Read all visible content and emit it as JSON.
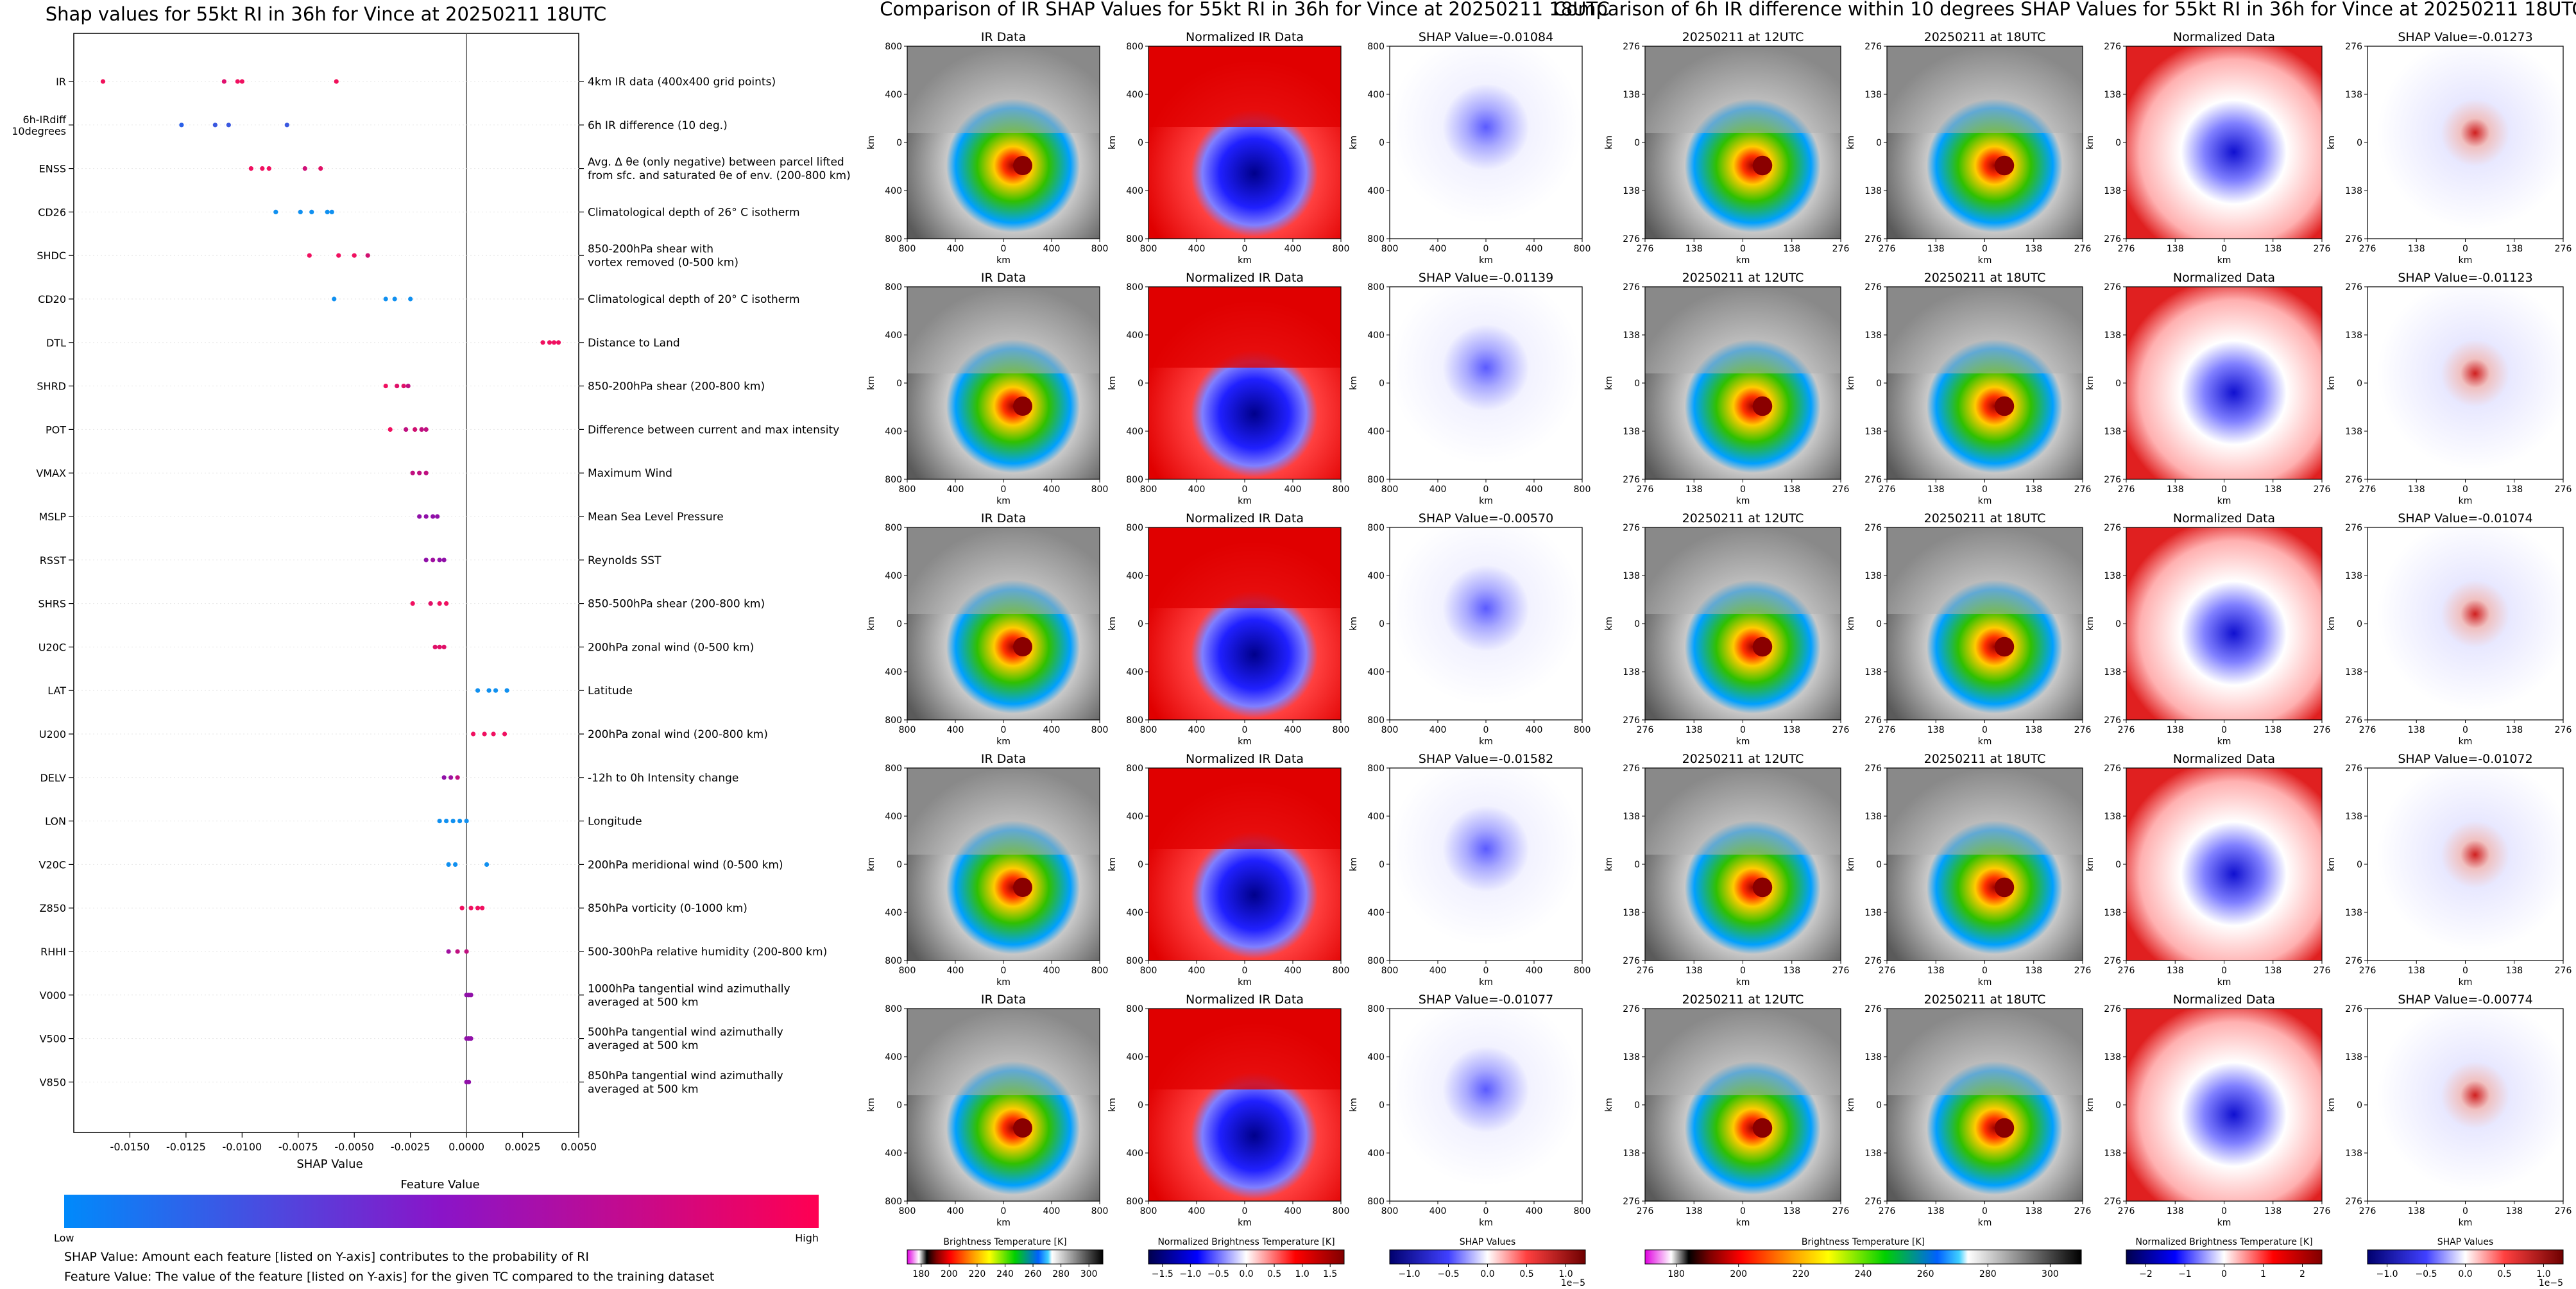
{
  "left": {
    "title": "Shap values for 55kt RI in 36h for Vince at 20250211 18UTC",
    "xlabel": "SHAP Value",
    "colorbar_title": "Feature Value",
    "colorbar_low": "Low",
    "colorbar_high": "High",
    "note1": "SHAP Value: Amount each feature [listed on Y-axis] contributes to the probability of RI",
    "note2": "Feature Value: The value of the feature [listed on Y-axis] for the given TC compared to the training dataset"
  },
  "chart_data": {
    "type": "scatter",
    "title": "Shap values for 55kt RI in 36h for Vince at 20250211 18UTC",
    "xlabel": "SHAP Value",
    "xlim": [
      -0.0175,
      0.005
    ],
    "xticks": [
      "-0.0150",
      "-0.0125",
      "-0.0100",
      "-0.0075",
      "-0.0050",
      "-0.0025",
      "0.0000",
      "0.0025",
      "0.0050"
    ],
    "xtick_values": [
      -0.015,
      -0.0125,
      -0.01,
      -0.0075,
      -0.005,
      -0.0025,
      0,
      0.0025,
      0.005
    ],
    "features": [
      {
        "name": "IR",
        "desc": [
          "4km IR data (400x400 grid points)"
        ],
        "values": [
          -0.0162,
          -0.0108,
          -0.0102,
          -0.01,
          -0.0058
        ],
        "colors": [
          "#f0105a",
          "#e0106e",
          "#f01060",
          "#f01060",
          "#f0105a"
        ]
      },
      {
        "name": "6h-IRdiff|10degrees",
        "desc": [
          "6h IR difference (10 deg.)"
        ],
        "values": [
          -0.0127,
          -0.0112,
          -0.0106,
          -0.008
        ],
        "colors": [
          "#2a60e8",
          "#3a58e0",
          "#3a58e0",
          "#3a58e0"
        ]
      },
      {
        "name": "ENSS",
        "desc": [
          "Avg. Δ θe (only negative) between parcel lifted",
          "from sfc. and saturated θe of env. (200-800 km)"
        ],
        "values": [
          -0.0096,
          -0.0091,
          -0.0088,
          -0.0072,
          -0.0065
        ],
        "colors": [
          "#f01060",
          "#f01060",
          "#f01060",
          "#d01078",
          "#e01066"
        ]
      },
      {
        "name": "CD26",
        "desc": [
          "Climatological depth of 26° C isotherm"
        ],
        "values": [
          -0.0085,
          -0.0074,
          -0.0069,
          -0.0062,
          -0.006
        ],
        "colors": [
          "#1090f0",
          "#1090f0",
          "#1090f0",
          "#1090f0",
          "#1090f0"
        ]
      },
      {
        "name": "SHDC",
        "desc": [
          "850-200hPa shear with",
          "vortex removed (0-500 km)"
        ],
        "values": [
          -0.007,
          -0.0057,
          -0.005,
          -0.0044
        ],
        "colors": [
          "#f01060",
          "#f01060",
          "#f01060",
          "#d01070"
        ]
      },
      {
        "name": "CD20",
        "desc": [
          "Climatological depth of 20° C isotherm"
        ],
        "values": [
          -0.0059,
          -0.0036,
          -0.0032,
          -0.0025
        ],
        "colors": [
          "#1090f0",
          "#1090f0",
          "#1090f0",
          "#1090f0"
        ]
      },
      {
        "name": "DTL",
        "desc": [
          "Distance to Land"
        ],
        "values": [
          0.0034,
          0.0037,
          0.0039,
          0.0041
        ],
        "colors": [
          "#f01060",
          "#f01060",
          "#f01060",
          "#f01060"
        ]
      },
      {
        "name": "SHRD",
        "desc": [
          "850-200hPa shear (200-800 km)"
        ],
        "values": [
          -0.0036,
          -0.0031,
          -0.0028,
          -0.0026
        ],
        "colors": [
          "#f01060",
          "#e01068",
          "#e01068",
          "#c01080"
        ]
      },
      {
        "name": "POT",
        "desc": [
          "Difference between current and max intensity"
        ],
        "values": [
          -0.0034,
          -0.0027,
          -0.0023,
          -0.002,
          -0.0018
        ],
        "colors": [
          "#f01060",
          "#c01080",
          "#d01070",
          "#c01080",
          "#c01080"
        ]
      },
      {
        "name": "VMAX",
        "desc": [
          "Maximum Wind"
        ],
        "values": [
          -0.0024,
          -0.0021,
          -0.0018
        ],
        "colors": [
          "#c01080",
          "#c01080",
          "#c01080"
        ]
      },
      {
        "name": "MSLP",
        "desc": [
          "Mean Sea Level Pressure"
        ],
        "values": [
          -0.0021,
          -0.0018,
          -0.0015,
          -0.0013
        ],
        "colors": [
          "#9010a8",
          "#9010a8",
          "#9010a8",
          "#9010a8"
        ]
      },
      {
        "name": "RSST",
        "desc": [
          "Reynolds SST"
        ],
        "values": [
          -0.0018,
          -0.0015,
          -0.0012,
          -0.001
        ],
        "colors": [
          "#9010a8",
          "#a010a0",
          "#9010a8",
          "#9010a8"
        ]
      },
      {
        "name": "SHRS",
        "desc": [
          "850-500hPa shear (200-800 km)"
        ],
        "values": [
          -0.0024,
          -0.0016,
          -0.0012,
          -0.0009
        ],
        "colors": [
          "#f01060",
          "#e01068",
          "#f01060",
          "#f01060"
        ]
      },
      {
        "name": "U20C",
        "desc": [
          "200hPa zonal wind (0-500 km)"
        ],
        "values": [
          -0.0014,
          -0.0012,
          -0.001
        ],
        "colors": [
          "#e01068",
          "#e01068",
          "#e01068"
        ]
      },
      {
        "name": "LAT",
        "desc": [
          "Latitude"
        ],
        "values": [
          0.0005,
          0.001,
          0.0013,
          0.0018
        ],
        "colors": [
          "#1090f0",
          "#1090f0",
          "#1090f0",
          "#1090f0"
        ]
      },
      {
        "name": "U200",
        "desc": [
          "200hPa zonal wind (200-800 km)"
        ],
        "values": [
          0.0003,
          0.0008,
          0.0012,
          0.0017
        ],
        "colors": [
          "#f01060",
          "#f01060",
          "#f01060",
          "#f01060"
        ]
      },
      {
        "name": "DELV",
        "desc": [
          "-12h to 0h Intensity change"
        ],
        "values": [
          -0.001,
          -0.0007,
          -0.0004
        ],
        "colors": [
          "#9010a8",
          "#a010a0",
          "#c01080"
        ]
      },
      {
        "name": "LON",
        "desc": [
          "Longitude"
        ],
        "values": [
          -0.0012,
          -0.0009,
          -0.0006,
          -0.0003,
          0.0
        ],
        "colors": [
          "#1090f0",
          "#1090f0",
          "#1090f0",
          "#1090f0",
          "#1090f0"
        ]
      },
      {
        "name": "V20C",
        "desc": [
          "200hPa meridional wind (0-500 km)"
        ],
        "values": [
          -0.0008,
          -0.0005,
          0.0009
        ],
        "colors": [
          "#1090f0",
          "#1090f0",
          "#1090f0"
        ]
      },
      {
        "name": "Z850",
        "desc": [
          "850hPa vorticity (0-1000 km)"
        ],
        "values": [
          -0.0002,
          0.0002,
          0.0005,
          0.0007
        ],
        "colors": [
          "#f01060",
          "#f01060",
          "#f01060",
          "#f01060"
        ]
      },
      {
        "name": "RHHI",
        "desc": [
          "500-300hPa relative humidity (200-800 km)"
        ],
        "values": [
          -0.0008,
          -0.0004,
          0.0
        ],
        "colors": [
          "#a010a0",
          "#c01080",
          "#c01080"
        ]
      },
      {
        "name": "V000",
        "desc": [
          "1000hPa tangential wind azimuthally",
          "averaged at 500 km"
        ],
        "values": [
          0.0,
          0.0001,
          0.0002
        ],
        "colors": [
          "#9010a8",
          "#9010a8",
          "#9010a8"
        ]
      },
      {
        "name": "V500",
        "desc": [
          "500hPa tangential wind azimuthally",
          "averaged at 500 km"
        ],
        "values": [
          0.0,
          0.0001,
          0.0002
        ],
        "colors": [
          "#9010a8",
          "#9010a8",
          "#9010a8"
        ]
      },
      {
        "name": "V850",
        "desc": [
          "850hPa tangential wind azimuthally",
          "averaged at 500 km"
        ],
        "values": [
          0.0,
          0.0001
        ],
        "colors": [
          "#9010a8",
          "#9010a8"
        ]
      }
    ],
    "legend": "none",
    "grid": "horizontal dotted"
  },
  "middle": {
    "title": "Comparison of IR SHAP Values for 55kt RI in 36h for Vince at 20250211 18UTC",
    "rows": [
      {
        "ir": "IR Data",
        "norm": "Normalized IR Data",
        "shap": "SHAP Value=-0.01084"
      },
      {
        "ir": "IR Data",
        "norm": "Normalized IR Data",
        "shap": "SHAP Value=-0.01139"
      },
      {
        "ir": "IR Data",
        "norm": "Normalized IR Data",
        "shap": "SHAP Value=-0.00570"
      },
      {
        "ir": "IR Data",
        "norm": "Normalized IR Data",
        "shap": "SHAP Value=-0.01582"
      },
      {
        "ir": "IR Data",
        "norm": "Normalized IR Data",
        "shap": "SHAP Value=-0.01077"
      }
    ],
    "axis_unit": "km",
    "yticks": [
      "800",
      "400",
      "0",
      "400",
      "800"
    ],
    "xticks": [
      "800",
      "400",
      "0",
      "400",
      "800"
    ],
    "cbar1": {
      "title": "Brightness Temperature [K]",
      "ticks": [
        "180",
        "200",
        "220",
        "240",
        "260",
        "280",
        "300"
      ]
    },
    "cbar2": {
      "title": "Normalized Brightness Temperature [K]",
      "ticks": [
        "−1.5",
        "−1.0",
        "−0.5",
        "0.0",
        "0.5",
        "1.0",
        "1.5"
      ]
    },
    "cbar3": {
      "title": "SHAP Values",
      "ticks": [
        "−1.0",
        "−0.5",
        "0.0",
        "0.5",
        "1.0"
      ],
      "offset": "1e−5"
    }
  },
  "right": {
    "title": "Comparison of 6h IR difference within 10 degrees SHAP Values for 55kt RI in 36h for Vince at 20250211 18UTC",
    "rows": [
      {
        "a": "20250211 at 12UTC",
        "b": "20250211 at 18UTC",
        "c": "Normalized Data",
        "d": "SHAP Value=-0.01273"
      },
      {
        "a": "20250211 at 12UTC",
        "b": "20250211 at 18UTC",
        "c": "Normalized Data",
        "d": "SHAP Value=-0.01123"
      },
      {
        "a": "20250211 at 12UTC",
        "b": "20250211 at 18UTC",
        "c": "Normalized Data",
        "d": "SHAP Value=-0.01074"
      },
      {
        "a": "20250211 at 12UTC",
        "b": "20250211 at 18UTC",
        "c": "Normalized Data",
        "d": "SHAP Value=-0.01072"
      },
      {
        "a": "20250211 at 12UTC",
        "b": "20250211 at 18UTC",
        "c": "Normalized Data",
        "d": "SHAP Value=-0.00774"
      }
    ],
    "axis_unit": "km",
    "yticks": [
      "276",
      "138",
      "0",
      "138",
      "276"
    ],
    "xticks": [
      "276",
      "138",
      "0",
      "138",
      "276"
    ],
    "cbar1": {
      "title": "Brightness Temperature [K]",
      "ticks": [
        "180",
        "200",
        "220",
        "240",
        "260",
        "280",
        "300"
      ]
    },
    "cbar2": {
      "title": "Normalized Brightness Temperature [K]",
      "ticks": [
        "−2",
        "−1",
        "0",
        "1",
        "2"
      ]
    },
    "cbar3": {
      "title": "SHAP Values",
      "ticks": [
        "−1.0",
        "−0.5",
        "0.0",
        "0.5",
        "1.0"
      ],
      "offset": "1e−5"
    }
  }
}
